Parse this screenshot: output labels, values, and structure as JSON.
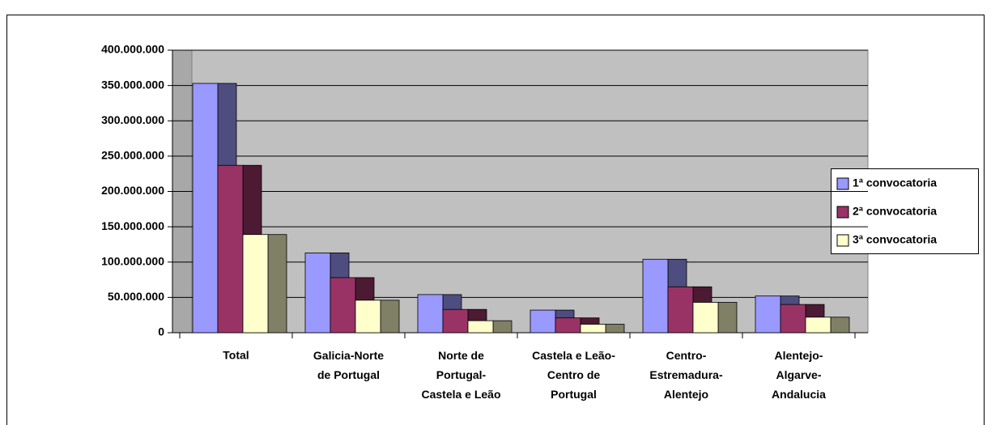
{
  "chart_data": {
    "type": "bar3d",
    "categories": [
      "Total",
      "Galicia-Norte\nde Portugal",
      "Norte de\nPortugal-\nCastela e Leão",
      "Castela e Leão-\nCentro de\nPortugal",
      "Centro-\nEstremadura-\nAlentejo",
      "Alentejo-\nAlgarve-\nAndalucia"
    ],
    "series": [
      {
        "name": "1ª convocatoria",
        "color": "#9999ff",
        "values": [
          353000000,
          113000000,
          54000000,
          32000000,
          104000000,
          52000000
        ]
      },
      {
        "name": "2ª convocatoria",
        "color": "#993366",
        "values": [
          237000000,
          78000000,
          33000000,
          21000000,
          65000000,
          40000000
        ]
      },
      {
        "name": "3ª convocatoria",
        "color": "#ffffcc",
        "values": [
          139000000,
          46000000,
          17000000,
          12000000,
          43000000,
          22000000
        ]
      }
    ],
    "ylim": [
      0,
      400000000
    ],
    "yticks": [
      0,
      {
        "value": 50000000,
        "label": "50.000.000"
      },
      {
        "value": 100000000,
        "label": "100.000.000"
      },
      {
        "value": 150000000,
        "label": "150.000.000"
      },
      {
        "value": 200000000,
        "label": "200.000.000"
      },
      {
        "value": 250000000,
        "label": "250.000.000"
      },
      {
        "value": 300000000,
        "label": "300.000.000"
      },
      {
        "value": 350000000,
        "label": "350.000.000"
      },
      {
        "value": 400000000,
        "label": "400.000.000"
      }
    ],
    "grid": true,
    "legend": "right"
  }
}
